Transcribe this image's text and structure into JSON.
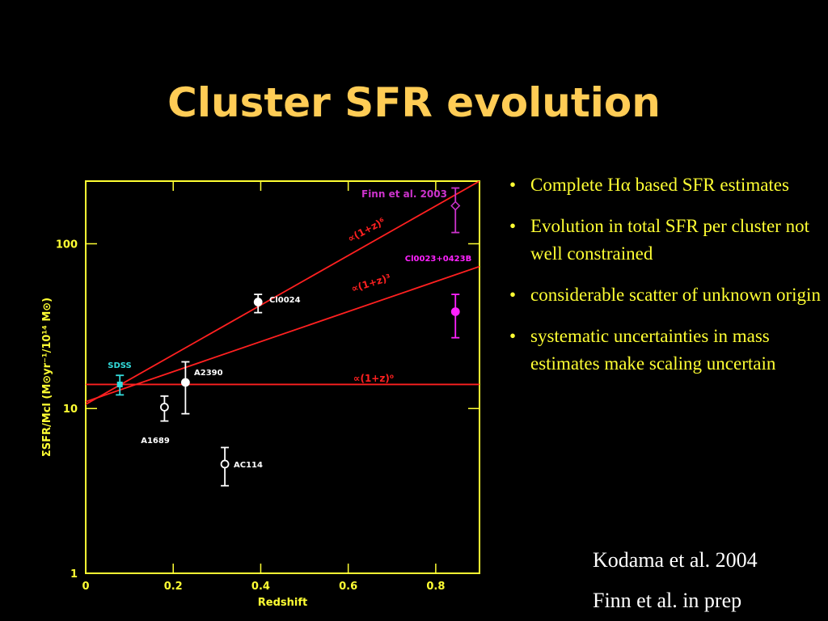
{
  "title": "Cluster SFR evolution",
  "bullets": [
    "Complete Hα based SFR estimates",
    "Evolution in total SFR per cluster not well constrained",
    "considerable scatter of unknown origin",
    "systematic uncertainties in mass estimates make scaling uncertain"
  ],
  "references": [
    "Kodama et al. 2004",
    "Finn et al. in prep"
  ],
  "chart_data": {
    "type": "scatter",
    "log_y": true,
    "x_label": "Redshift",
    "y_label": "ΣSFR/Mcl (M⊙yr⁻¹/10¹⁴ M⊙)",
    "xlim": [
      0,
      0.9
    ],
    "ylim": [
      1,
      240
    ],
    "xticks": [
      0,
      0.2,
      0.4,
      0.6,
      0.8
    ],
    "yticks": [
      1,
      10,
      100
    ],
    "axis_color": "#ffff33",
    "series": [
      {
        "name": "∝(1+z)⁶",
        "color": "#ff2020",
        "x": [
          0,
          0.9
        ],
        "values": [
          10.6,
          240
        ]
      },
      {
        "name": "∝(1+z)³",
        "color": "#ff2020",
        "x": [
          0,
          0.9
        ],
        "values": [
          11.0,
          72.8
        ]
      },
      {
        "name": "∝(1+z)⁰",
        "color": "#ff2020",
        "x": [
          0,
          0.9
        ],
        "values": [
          14.0,
          14.0
        ]
      }
    ],
    "points": [
      {
        "name": "SDSS",
        "color": "#33dddd",
        "marker": "square",
        "x": 0.078,
        "value": 14.0,
        "upper": 15.9,
        "lower": 12.1
      },
      {
        "name": "A1689",
        "color": "#ffffff",
        "marker": "open",
        "x": 0.18,
        "value": 10.2,
        "upper": 11.9,
        "lower": 8.4
      },
      {
        "name": "A2390",
        "color": "#ffffff",
        "marker": "filled",
        "x": 0.228,
        "value": 14.4,
        "upper": 19.2,
        "lower": 9.3
      },
      {
        "name": "AC114",
        "color": "#ffffff",
        "marker": "open",
        "x": 0.318,
        "value": 4.6,
        "upper": 5.8,
        "lower": 3.4
      },
      {
        "name": "Cl0024",
        "color": "#ffffff",
        "marker": "filled",
        "x": 0.394,
        "value": 44.3,
        "upper": 49.3,
        "lower": 38.2
      },
      {
        "name": "Cl0023+0423B",
        "color": "#ff22ff",
        "marker": "filled",
        "x": 0.845,
        "value": 38.7,
        "upper": 49.3,
        "lower": 26.9
      },
      {
        "name": "Finn et al. 2003",
        "color": "#cc33cc",
        "marker": "diamond",
        "x": 0.845,
        "value": 170,
        "upper": 218,
        "lower": 117
      }
    ]
  }
}
